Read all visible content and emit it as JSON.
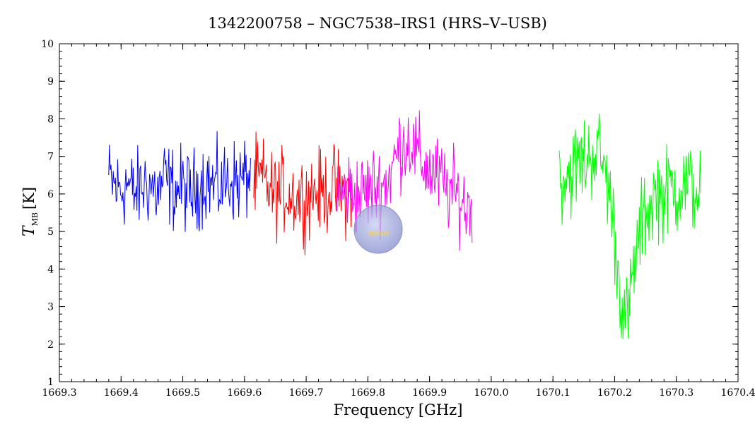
{
  "chart_data": {
    "type": "line",
    "title": "1342200758 – NGC7538–IRS1 (HRS–V–USB)",
    "xlabel": "Frequency [GHz]",
    "ylabel": {
      "symbol": "T",
      "subscript": "MB",
      "unit": "[K]"
    },
    "xlim": [
      1669.3,
      1670.4
    ],
    "ylim": [
      1,
      10
    ],
    "x_ticks": [
      1669.3,
      1669.4,
      1669.5,
      1669.6,
      1669.7,
      1669.8,
      1669.9,
      1670.0,
      1670.1,
      1670.2,
      1670.3,
      1670.4
    ],
    "x_tick_labels": [
      "1669.3",
      "1669.4",
      "1669.5",
      "1669.6",
      "1669.7",
      "1669.8",
      "1669.9",
      "1670.0",
      "1670.1",
      "1670.2",
      "1670.3",
      "1670.4"
    ],
    "y_ticks": [
      1,
      2,
      3,
      4,
      5,
      6,
      7,
      8,
      9,
      10
    ],
    "y_tick_labels": [
      "1",
      "2",
      "3",
      "4",
      "5",
      "6",
      "7",
      "8",
      "9",
      "10"
    ],
    "watermark": "WISH",
    "series": [
      {
        "color": "#0000ff",
        "x": [
          1669.38,
          1669.39,
          1669.4,
          1669.41,
          1669.42,
          1669.43,
          1669.44,
          1669.45,
          1669.46,
          1669.47,
          1669.48,
          1669.49,
          1669.5,
          1669.51,
          1669.52,
          1669.53,
          1669.54,
          1669.55,
          1669.56,
          1669.57,
          1669.58,
          1669.59,
          1669.6,
          1669.61
        ],
        "y": [
          6.4,
          6.2,
          6.1,
          6.3,
          6.0,
          6.1,
          6.3,
          6.2,
          6.0,
          6.4,
          6.2,
          6.1,
          6.2,
          6.0,
          6.1,
          6.3,
          6.4,
          6.2,
          6.2,
          6.3,
          6.4,
          6.3,
          6.4,
          6.5
        ],
        "noise": 0.55
      },
      {
        "color": "#ff0000",
        "x": [
          1669.615,
          1669.625,
          1669.635,
          1669.645,
          1669.655,
          1669.665,
          1669.675,
          1669.685,
          1669.695,
          1669.705,
          1669.715,
          1669.725,
          1669.735,
          1669.745,
          1669.755,
          1669.765,
          1669.775
        ],
        "y": [
          6.3,
          6.4,
          6.3,
          6.0,
          6.0,
          6.1,
          6.0,
          5.9,
          5.9,
          6.0,
          6.1,
          6.0,
          6.1,
          6.2,
          6.0,
          6.0,
          6.1
        ],
        "noise": 0.55
      },
      {
        "color": "#ff00ff",
        "x": [
          1669.75,
          1669.76,
          1669.77,
          1669.78,
          1669.79,
          1669.8,
          1669.81,
          1669.82,
          1669.83,
          1669.84,
          1669.85,
          1669.86,
          1669.87,
          1669.88,
          1669.89,
          1669.9,
          1669.91,
          1669.92,
          1669.93,
          1669.94,
          1669.95,
          1669.96,
          1669.97
        ],
        "y": [
          5.9,
          6.0,
          6.1,
          6.0,
          6.0,
          6.1,
          6.2,
          6.2,
          6.3,
          6.7,
          7.2,
          7.4,
          7.4,
          7.0,
          6.8,
          6.6,
          6.5,
          6.3,
          6.1,
          6.0,
          5.9,
          5.6,
          5.9
        ],
        "noise": 0.55
      },
      {
        "color": "#00ff00",
        "x": [
          1670.11,
          1670.12,
          1670.13,
          1670.14,
          1670.15,
          1670.16,
          1670.17,
          1670.18,
          1670.19,
          1670.2,
          1670.205,
          1670.21,
          1670.215,
          1670.22,
          1670.225,
          1670.23,
          1670.24,
          1670.25,
          1670.26,
          1670.27,
          1670.28,
          1670.29,
          1670.3,
          1670.31,
          1670.32,
          1670.33,
          1670.34
        ],
        "y": [
          6.3,
          6.5,
          6.6,
          6.8,
          6.9,
          7.0,
          7.2,
          6.9,
          6.2,
          4.9,
          3.9,
          3.4,
          2.8,
          2.6,
          3.1,
          3.9,
          4.9,
          5.5,
          5.8,
          6.1,
          5.9,
          6.2,
          6.1,
          6.3,
          6.2,
          6.1,
          6.2
        ],
        "noise": 0.6
      }
    ]
  }
}
